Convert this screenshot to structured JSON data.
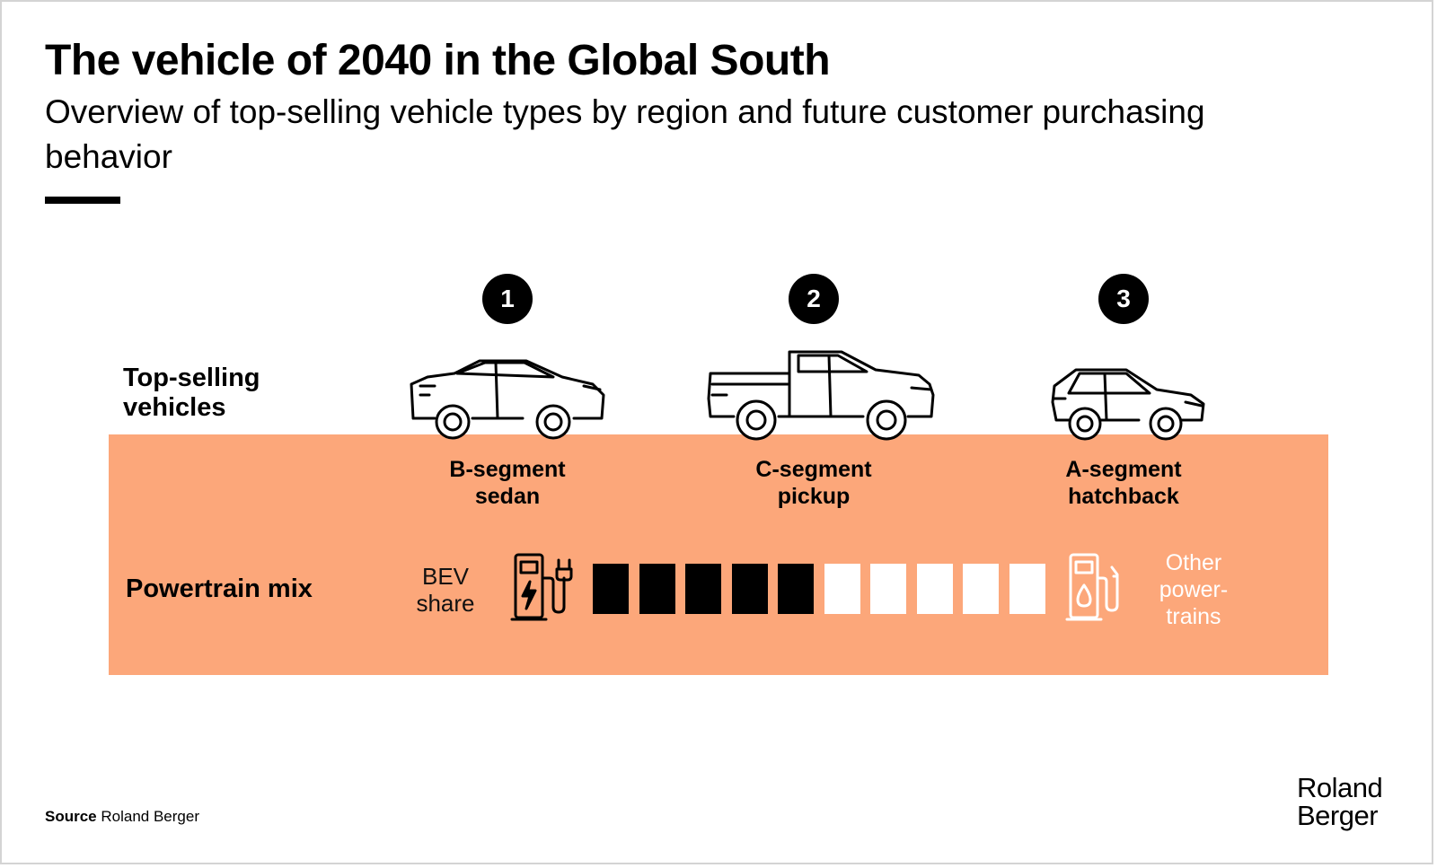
{
  "header": {
    "title": "The vehicle of 2040 in the Global South",
    "subtitle": "Overview of top-selling vehicle types by region and future customer purchasing behavior"
  },
  "rows": {
    "vehicles_label": "Top-selling vehicles",
    "powertrain_label": "Powertrain mix"
  },
  "vehicles": [
    {
      "rank": "1",
      "label_line1": "B-segment",
      "label_line2": "sedan",
      "icon": "sedan-icon"
    },
    {
      "rank": "2",
      "label_line1": "C-segment",
      "label_line2": "pickup",
      "icon": "pickup-truck-icon"
    },
    {
      "rank": "3",
      "label_line1": "A-segment",
      "label_line2": "hatchback",
      "icon": "hatchback-icon"
    }
  ],
  "powertrain": {
    "bev_label_line1": "BEV",
    "bev_label_line2": "share",
    "other_label_line1": "Other",
    "other_label_line2": "power-",
    "other_label_line3": "trains",
    "bev_icon": "ev-charging-station-icon",
    "other_icon": "fuel-pump-icon",
    "total_blocks": 10,
    "bev_blocks": 5
  },
  "colors": {
    "band": "#fca77a",
    "bev": "#000000",
    "other": "#ffffff"
  },
  "footer": {
    "source_label": "Source",
    "source_value": "Roland Berger",
    "logo_line1": "Roland",
    "logo_line2": "Berger"
  }
}
